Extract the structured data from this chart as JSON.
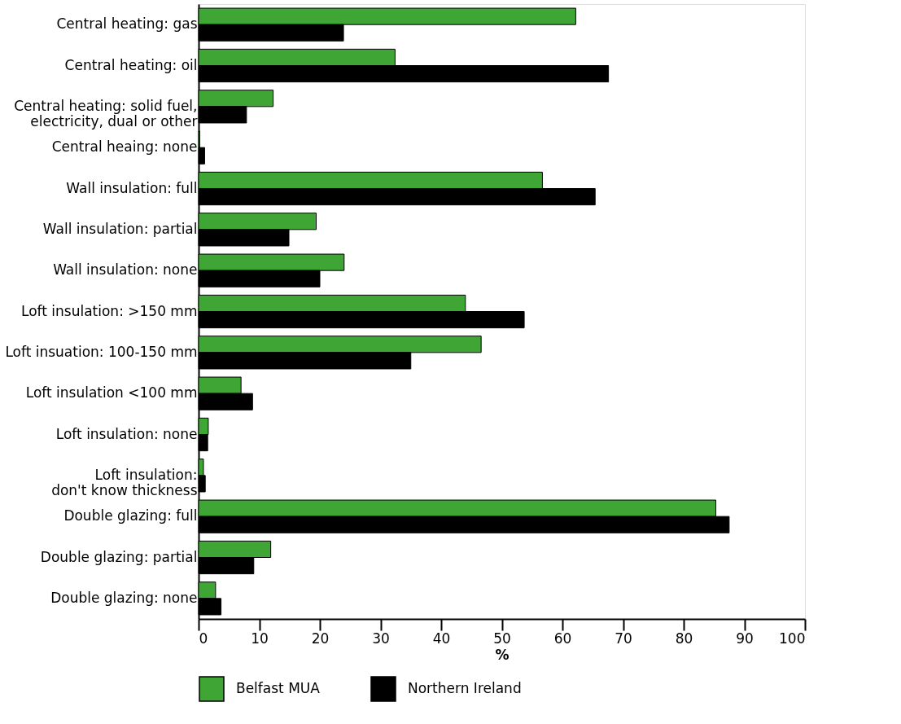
{
  "chart_data": {
    "type": "bar",
    "orientation": "horizontal",
    "xlabel": "%",
    "categories": [
      "Central heating: gas",
      "Central heating: oil",
      "Central heating: solid fuel,\nelectricity, dual or other",
      "Central heaing: none",
      "Wall insulation: full",
      "Wall insulation: partial",
      "Wall insulation: none",
      "Loft insulation: >150 mm",
      "Loft insuation: 100-150 mm",
      "Loft insulation <100 mm",
      "Loft insulation: none",
      "Loft insulation:\ndon't know thickness",
      "Double glazing: full",
      "Double glazing: partial",
      "Double glazing: none"
    ],
    "series": [
      {
        "name": "Belfast MUA",
        "color": "#3fa535",
        "values": [
          62.2,
          32.4,
          12.3,
          0.2,
          56.7,
          19.4,
          24.0,
          44.0,
          46.6,
          7.0,
          1.6,
          0.8,
          85.3,
          11.9,
          2.8
        ]
      },
      {
        "name": "Northern Ireland",
        "color": "#000000",
        "values": [
          23.9,
          67.6,
          7.9,
          1.0,
          65.4,
          14.9,
          20.0,
          53.7,
          35.0,
          8.9,
          1.5,
          1.1,
          87.5,
          9.1,
          3.7
        ]
      }
    ],
    "xlim": [
      0,
      100
    ],
    "xticks": [
      0,
      10,
      20,
      30,
      40,
      50,
      60,
      70,
      80,
      90,
      100
    ],
    "grid": false,
    "legend": "bottom"
  }
}
